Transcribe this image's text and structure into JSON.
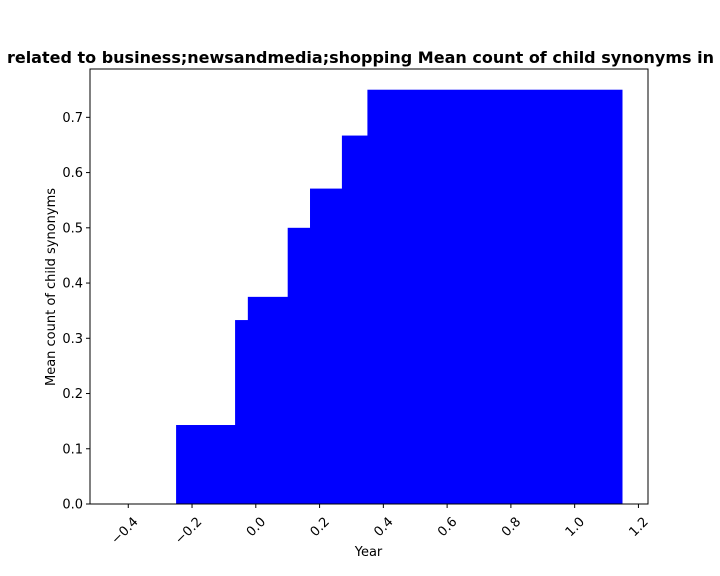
{
  "chart_data": {
    "type": "bar",
    "title": "related to business;newsandmedia;shopping Mean count of child synonyms in p",
    "xlabel": "Year",
    "ylabel": "Mean count of child synonyms",
    "xlim": [
      -0.52,
      1.23
    ],
    "ylim": [
      0,
      0.7875
    ],
    "grid": false,
    "bar_color": "#0000ff",
    "x_ticks": [
      -0.4,
      -0.2,
      0.0,
      0.2,
      0.4,
      0.6,
      0.8,
      1.0,
      1.2
    ],
    "x_tick_labels": [
      "−0.4",
      "−0.2",
      "0.0",
      "0.2",
      "0.4",
      "0.6",
      "0.8",
      "1.0",
      "1.2"
    ],
    "y_ticks": [
      0.0,
      0.1,
      0.2,
      0.3,
      0.4,
      0.5,
      0.6,
      0.7
    ],
    "y_tick_labels": [
      "0.0",
      "0.1",
      "0.2",
      "0.3",
      "0.4",
      "0.5",
      "0.6",
      "0.7"
    ],
    "bars": [
      {
        "x0": -0.25,
        "x1": 1.15,
        "value": 0.143
      },
      {
        "x0": -0.065,
        "x1": 1.15,
        "value": 0.333
      },
      {
        "x0": -0.025,
        "x1": 1.15,
        "value": 0.375
      },
      {
        "x0": 0.1,
        "x1": 1.15,
        "value": 0.5
      },
      {
        "x0": 0.17,
        "x1": 1.15,
        "value": 0.571
      },
      {
        "x0": 0.27,
        "x1": 1.15,
        "value": 0.667
      },
      {
        "x0": 0.35,
        "x1": 1.15,
        "value": 0.75
      }
    ]
  }
}
